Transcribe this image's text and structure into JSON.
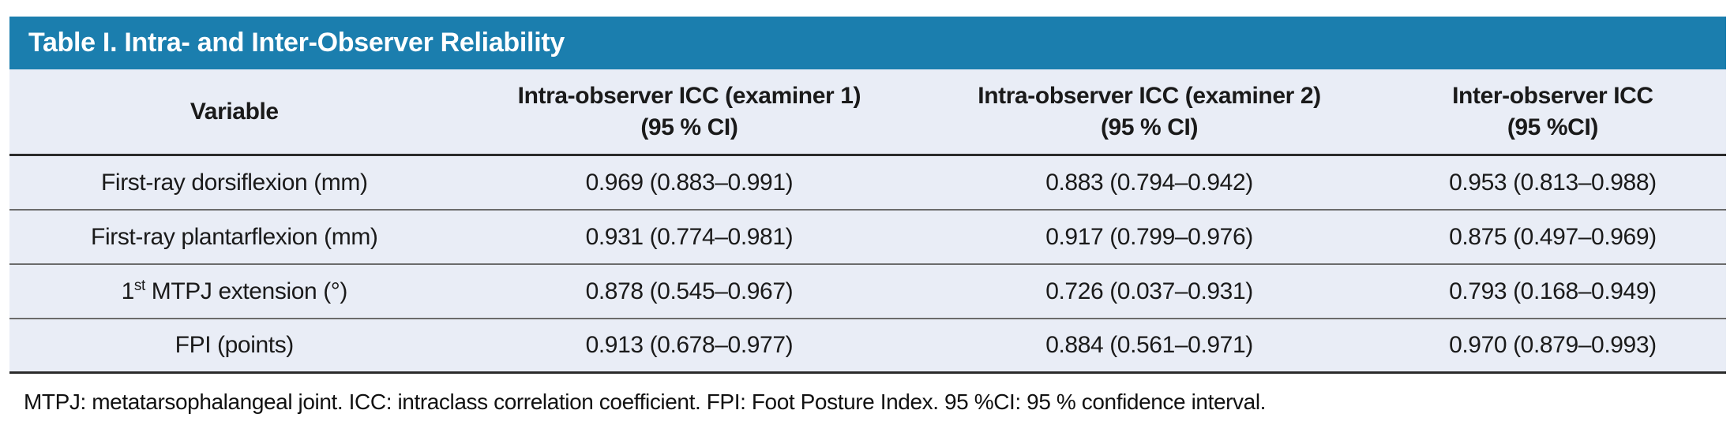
{
  "table": {
    "title": "Table I. Intra- and Inter-Observer Reliability",
    "columns": [
      {
        "label": "Variable",
        "sub": ""
      },
      {
        "label": "Intra-observer ICC (examiner 1)",
        "sub": "(95 % CI)"
      },
      {
        "label": "Intra-observer ICC (examiner 2)",
        "sub": "(95 % CI)"
      },
      {
        "label": "Inter-observer ICC",
        "sub": "(95 %CI)"
      }
    ],
    "rows": [
      {
        "variable": {
          "pre": "First-ray dorsiflexion (mm)",
          "sup": "",
          "post": ""
        },
        "icc_examiner1": "0.969 (0.883–0.991)",
        "icc_examiner2": "0.883 (0.794–0.942)",
        "inter_observer": "0.953 (0.813–0.988)"
      },
      {
        "variable": {
          "pre": "First-ray plantarflexion (mm)",
          "sup": "",
          "post": ""
        },
        "icc_examiner1": "0.931 (0.774–0.981)",
        "icc_examiner2": "0.917 (0.799–0.976)",
        "inter_observer": "0.875 (0.497–0.969)"
      },
      {
        "variable": {
          "pre": "1",
          "sup": "st",
          "post": " MTPJ extension (°)"
        },
        "icc_examiner1": "0.878 (0.545–0.967)",
        "icc_examiner2": "0.726 (0.037–0.931)",
        "inter_observer": "0.793 (0.168–0.949)"
      },
      {
        "variable": {
          "pre": "FPI (points)",
          "sup": "",
          "post": ""
        },
        "icc_examiner1": "0.913 (0.678–0.977)",
        "icc_examiner2": "0.884 (0.561–0.971)",
        "inter_observer": "0.970 (0.879–0.993)"
      }
    ],
    "footnote": "MTPJ: metatarsophalangeal joint. ICC: intraclass correlation coefficient. FPI: Foot Posture Index. 95 %CI: 95 % confidence interval.",
    "colors": {
      "title_bar_bg": "#1b7eae",
      "title_text": "#ffffff",
      "body_bg": "#e9edf6",
      "border_dark": "#2b2b2b",
      "border_light": "#6b6b6b",
      "text": "#1a1a1a"
    }
  }
}
